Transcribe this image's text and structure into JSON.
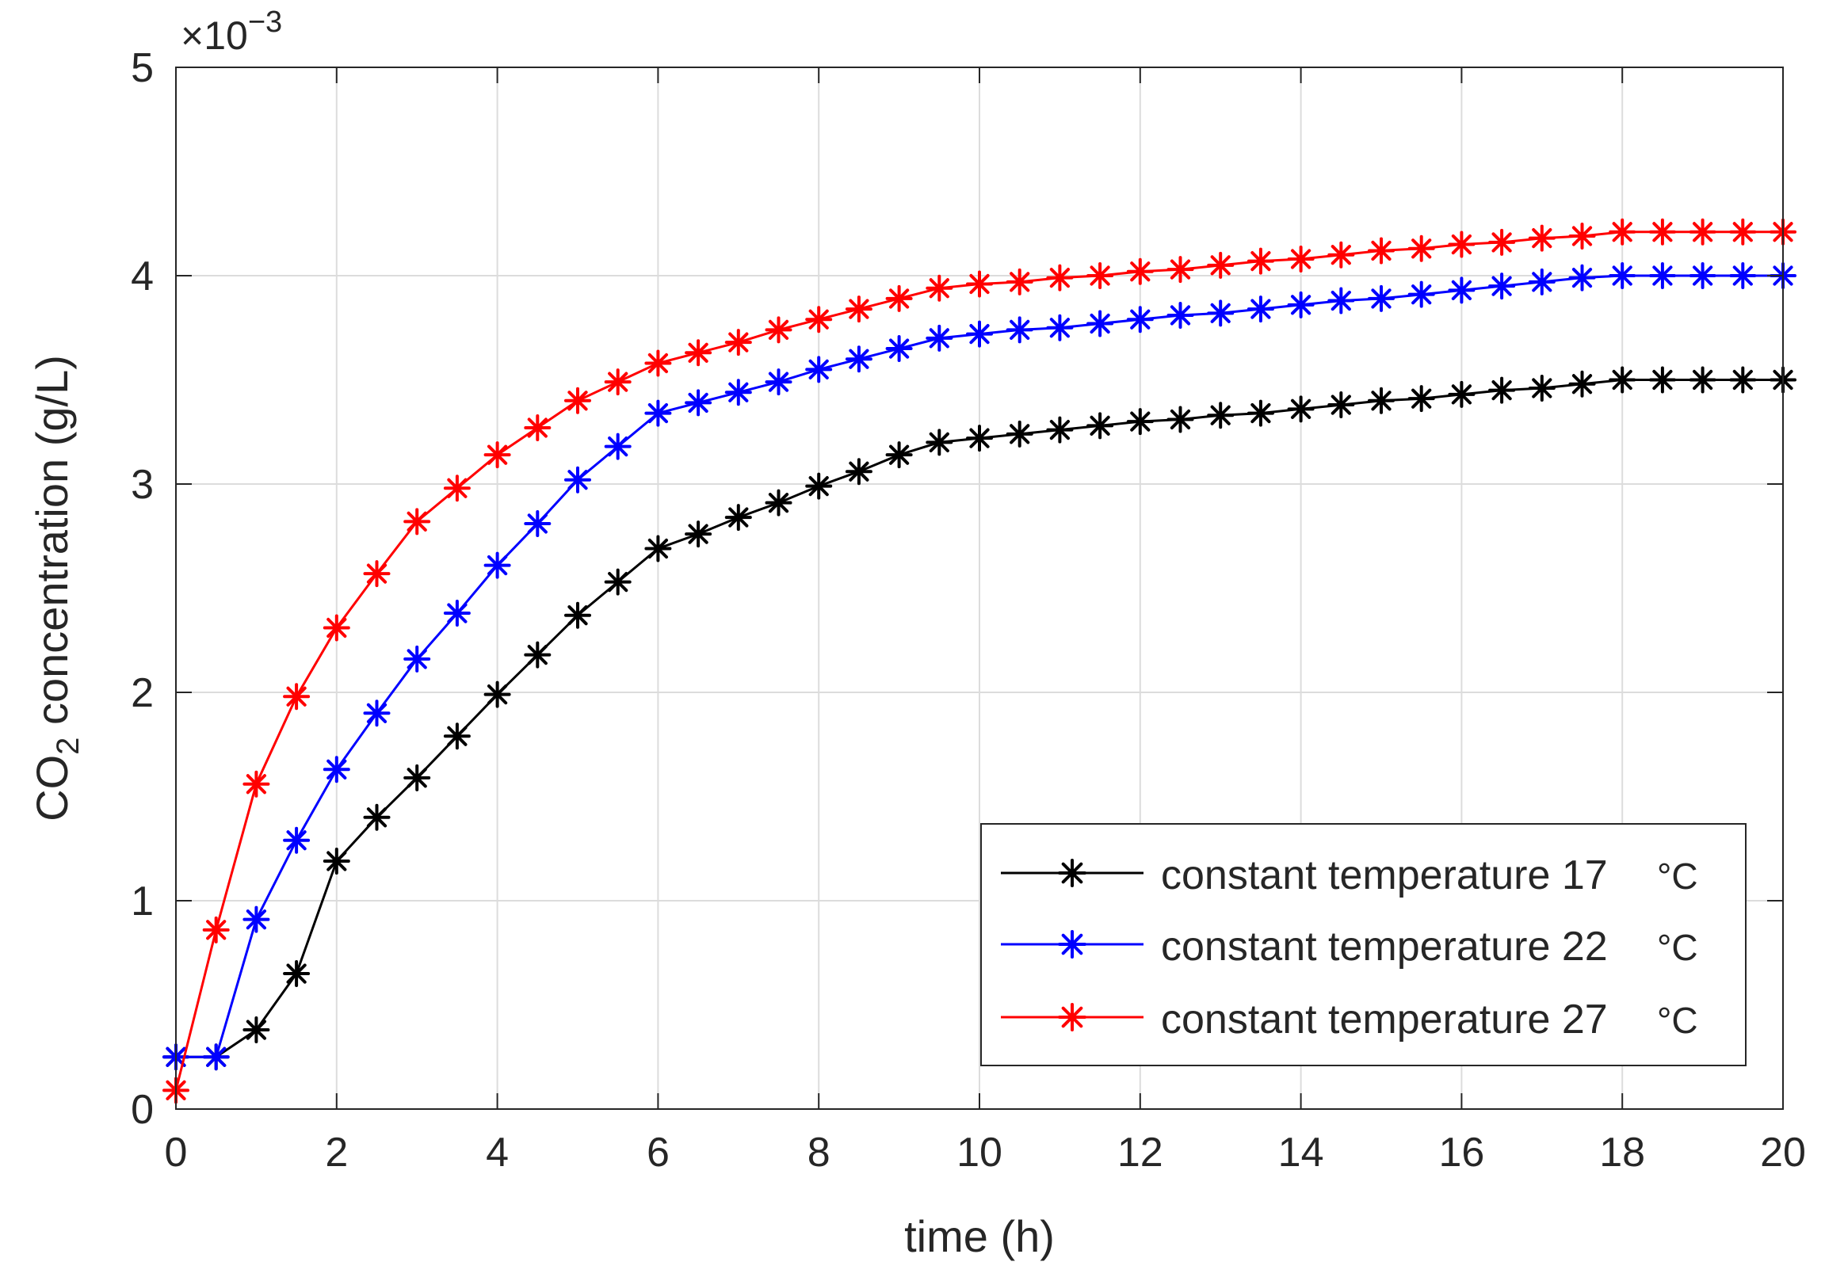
{
  "chart_data": {
    "type": "line",
    "xlabel": "time (h)",
    "ylabel_main": "CO",
    "ylabel_sub": "2",
    "ylabel_rest": " concentration (g/L)",
    "y_exponent_base": "×10",
    "y_exponent_power": "−3",
    "xlim": [
      0,
      20
    ],
    "ylim": [
      0,
      5
    ],
    "x_ticks": [
      0,
      2,
      4,
      6,
      8,
      10,
      12,
      14,
      16,
      18,
      20
    ],
    "y_ticks": [
      0,
      1,
      2,
      3,
      4,
      5
    ],
    "grid": true,
    "legend_position": "bottom-right",
    "x": [
      0,
      0.5,
      1,
      1.5,
      2,
      2.5,
      3,
      3.5,
      4,
      4.5,
      5,
      5.5,
      6,
      6.5,
      7,
      7.5,
      8,
      8.5,
      9,
      9.5,
      10,
      10.5,
      11,
      11.5,
      12,
      12.5,
      13,
      13.5,
      14,
      14.5,
      15,
      15.5,
      16,
      16.5,
      17,
      17.5,
      18,
      18.5,
      19,
      19.5,
      20
    ],
    "series": [
      {
        "name": "constant temperature 17",
        "unit": "°C",
        "color": "#000000",
        "values": [
          0.25,
          0.25,
          0.38,
          0.65,
          1.19,
          1.4,
          1.59,
          1.79,
          1.99,
          2.18,
          2.37,
          2.53,
          2.69,
          2.76,
          2.84,
          2.91,
          2.99,
          3.06,
          3.14,
          3.2,
          3.22,
          3.24,
          3.26,
          3.28,
          3.3,
          3.31,
          3.33,
          3.34,
          3.36,
          3.38,
          3.4,
          3.41,
          3.43,
          3.45,
          3.46,
          3.48,
          3.5,
          3.5,
          3.5,
          3.5,
          3.5
        ]
      },
      {
        "name": "constant temperature 22",
        "unit": "°C",
        "color": "#0000ff",
        "values": [
          0.25,
          0.25,
          0.91,
          1.29,
          1.63,
          1.9,
          2.16,
          2.38,
          2.61,
          2.81,
          3.02,
          3.18,
          3.34,
          3.39,
          3.44,
          3.49,
          3.55,
          3.6,
          3.65,
          3.7,
          3.72,
          3.74,
          3.75,
          3.77,
          3.79,
          3.81,
          3.82,
          3.84,
          3.86,
          3.88,
          3.89,
          3.91,
          3.93,
          3.95,
          3.97,
          3.99,
          4.0,
          4.0,
          4.0,
          4.0,
          4.0
        ]
      },
      {
        "name": "constant temperature 27",
        "unit": "°C",
        "color": "#ff0000",
        "values": [
          0.09,
          0.86,
          1.56,
          1.98,
          2.31,
          2.57,
          2.82,
          2.98,
          3.14,
          3.27,
          3.4,
          3.49,
          3.58,
          3.63,
          3.68,
          3.74,
          3.79,
          3.84,
          3.89,
          3.94,
          3.96,
          3.97,
          3.99,
          4.0,
          4.02,
          4.03,
          4.05,
          4.07,
          4.08,
          4.1,
          4.12,
          4.13,
          4.15,
          4.16,
          4.18,
          4.19,
          4.21,
          4.21,
          4.21,
          4.21,
          4.21
        ]
      }
    ]
  }
}
